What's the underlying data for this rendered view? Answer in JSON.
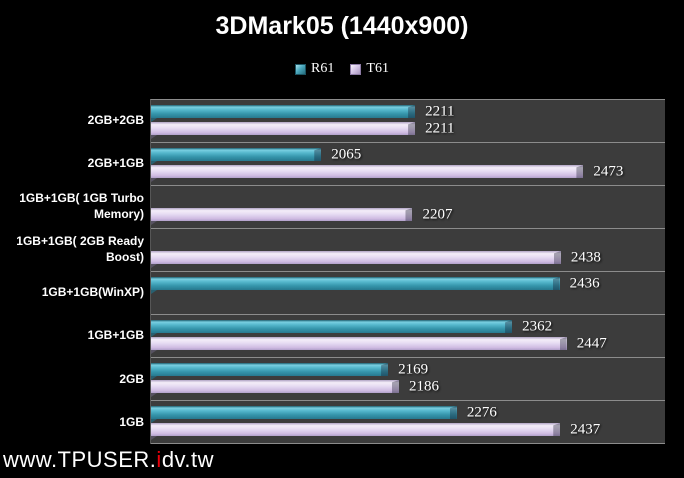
{
  "header": {
    "title": "3DMark05 (1440x900)"
  },
  "legend": {
    "items": [
      {
        "label": "R61",
        "color": "#3f9fb5"
      },
      {
        "label": "T61",
        "color": "#d9c9ea"
      }
    ]
  },
  "watermark": {
    "prefix": "www.TPUSER.",
    "accent": "i",
    "suffix": "dv.tw",
    "accent_color": "#e8000a"
  },
  "chart_data": {
    "type": "bar",
    "orientation": "horizontal",
    "title": "3DMark05 (1440x900)",
    "categories": [
      "2GB+2GB",
      "2GB+1GB",
      "1GB+1GB( 1GB Turbo Memory)",
      "1GB+1GB( 2GB Ready Boost)",
      "1GB+1GB(WinXP)",
      "1GB+1GB",
      "2GB",
      "1GB"
    ],
    "series": [
      {
        "name": "R61",
        "color": "#3f9fb5",
        "values": [
          2211,
          2065,
          null,
          null,
          2436,
          2362,
          2169,
          2276
        ]
      },
      {
        "name": "T61",
        "color": "#d9c9ea",
        "values": [
          2211,
          2473,
          2207,
          2438,
          null,
          2447,
          2186,
          2437
        ]
      }
    ],
    "xlim": [
      1800,
      2600
    ],
    "data_labels": true,
    "legend_position": "top",
    "plot_background": "#3c3c3c",
    "page_background": "#000000",
    "separator_color": "#8c8c8c"
  }
}
